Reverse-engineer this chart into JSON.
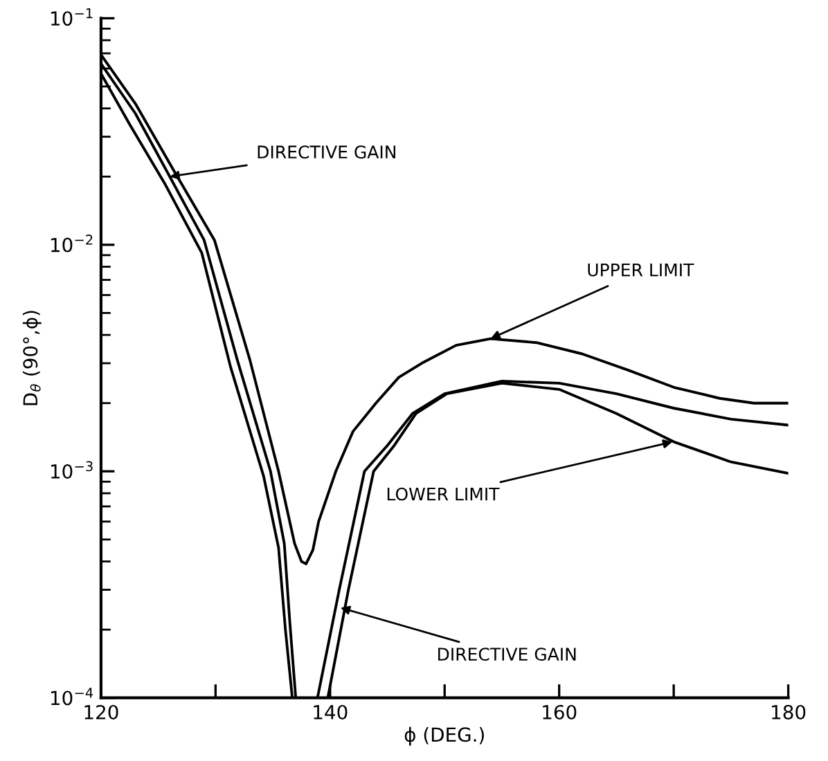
{
  "chart_data": {
    "type": "line",
    "xlabel": "ϕ (DEG.)",
    "ylabel": "D$_{θ}$ (90°,ϕ)",
    "log": "y",
    "grid": false,
    "legend": false,
    "marker": "none",
    "line_style": "solid",
    "xlim": [
      120,
      180
    ],
    "xticks": [
      120,
      {
        "value": 130,
        "label": null
      },
      140,
      {
        "value": 150,
        "label": null
      },
      160,
      {
        "value": 170,
        "label": null
      },
      180
    ],
    "ylim": [
      0.0001,
      0.1
    ],
    "yticks": [
      {
        "value": 0.0001,
        "label": "10$^{−4}$"
      },
      {
        "value": 0.001,
        "label": "10$^{−3}$"
      },
      {
        "value": 0.01,
        "label": "10$^{−2}$"
      },
      {
        "value": 0.1,
        "label": "10$^{−1}$"
      }
    ],
    "series": [
      {
        "color": "#000000",
        "x": [
          120,
          123,
          126.3,
          129.9,
          133,
          135.5,
          136.9,
          137.5,
          137.9,
          138.5,
          139,
          140.5,
          142,
          144,
          146,
          148,
          151,
          154,
          158,
          162,
          166,
          170,
          174,
          177,
          180
        ],
        "values": [
          0.069,
          0.042,
          0.0215,
          0.0105,
          0.0031,
          0.001,
          0.00048,
          0.0004,
          0.00039,
          0.00045,
          0.0006,
          0.001,
          0.0015,
          0.002,
          0.0026,
          0.003,
          0.0036,
          0.00385,
          0.0037,
          0.0033,
          0.0028,
          0.00235,
          0.0021,
          0.002,
          0.002
        ]
      },
      {
        "color": "#000000",
        "x": [
          120,
          123,
          126,
          129,
          131.9,
          134.8,
          136,
          136.5,
          137,
          null,
          138.9,
          140.8,
          143,
          145,
          147.2,
          150,
          155,
          160,
          165,
          170,
          175,
          180
        ],
        "values": [
          0.063,
          0.038,
          0.02,
          0.0105,
          0.0031,
          0.001,
          0.00048,
          0.00021,
          0.0001,
          null,
          0.0001,
          0.0003,
          0.001,
          0.0013,
          0.0018,
          0.0022,
          0.0025,
          0.00245,
          0.0022,
          0.0019,
          0.0017,
          0.0016
        ]
      },
      {
        "color": "#000000",
        "x": [
          120,
          122.5,
          125.6,
          128.8,
          131.3,
          134.2,
          135.5,
          136.1,
          136.7,
          null,
          139.8,
          141.6,
          143.8,
          145.6,
          147.5,
          150.2,
          155,
          160,
          165,
          170,
          175,
          180
        ],
        "values": [
          0.057,
          0.034,
          0.0185,
          0.0092,
          0.0029,
          0.00095,
          0.00046,
          0.0002,
          0.0001,
          null,
          0.0001,
          0.0003,
          0.001,
          0.0013,
          0.0018,
          0.0022,
          0.00245,
          0.0023,
          0.0018,
          0.00135,
          0.0011,
          0.00098
        ]
      }
    ],
    "annotations": [
      {
        "text": "DIRECTIVE GAIN",
        "x": 126,
        "y": 0.02
      },
      {
        "text": "UPPER LIMIT",
        "x": 154,
        "y": 0.00385
      },
      {
        "text": "LOWER LIMIT",
        "x": 169.9,
        "y": 0.00135
      },
      {
        "text": "DIRECTIVE GAIN",
        "x": 140.9,
        "y": 0.00025
      }
    ]
  }
}
